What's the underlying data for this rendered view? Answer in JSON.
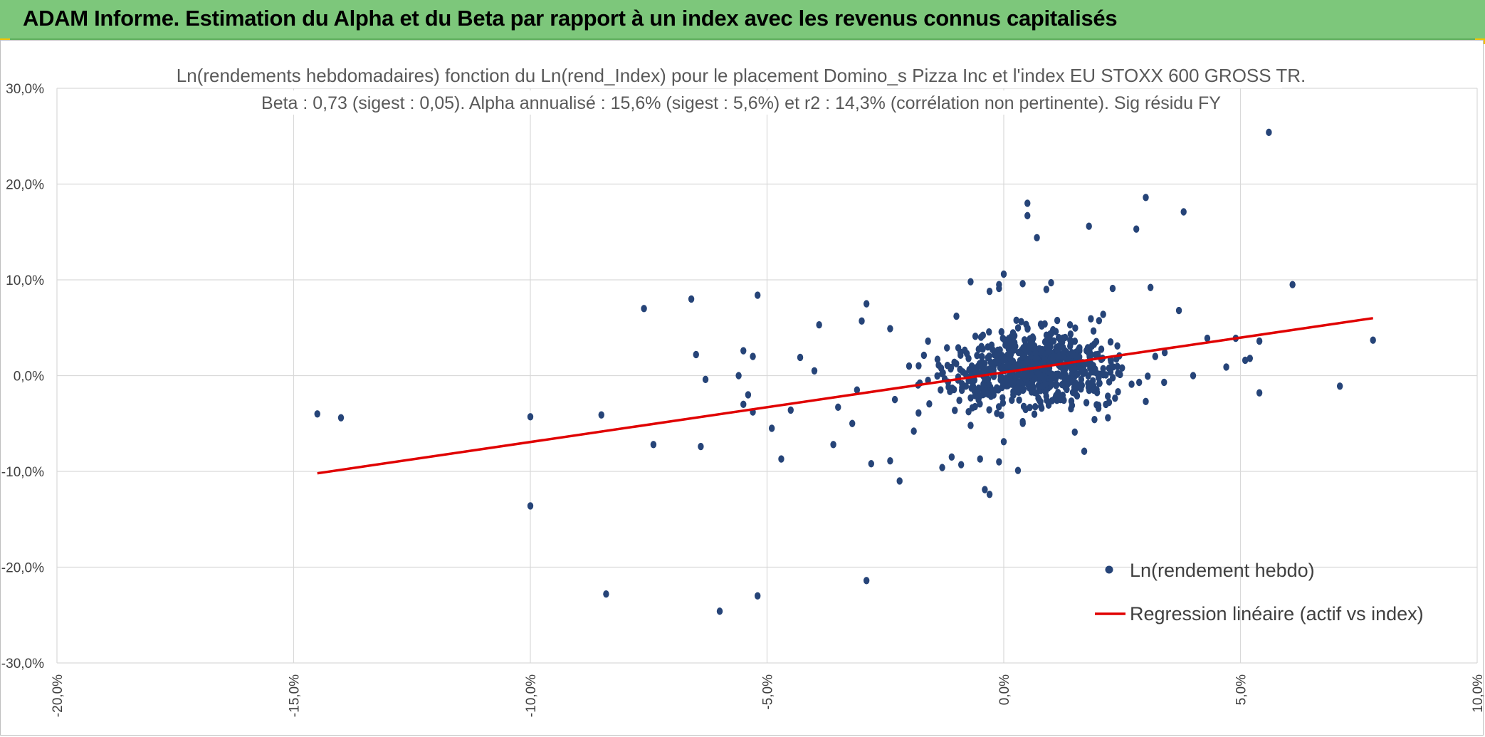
{
  "header": {
    "title": "ADAM Informe. Estimation du Alpha et du Beta par rapport à un index avec les revenus connus capitalisés"
  },
  "colors": {
    "header_bg": "#7dc77b",
    "points": "#264478",
    "regression": "#e00000",
    "grid": "#d9d9d9",
    "accent_corner": "#f2c200"
  },
  "chart_data": {
    "type": "scatter",
    "title": "Ln(rendements hebdomadaires) fonction du Ln(rend_Index) pour le placement Domino_s Pizza Inc et l'index EU STOXX 600 GROSS TR.",
    "subtitle": "Beta : 0,73 (sigest : 0,05).  Alpha annualisé : 15,6% (sigest : 5,6%) et r2 : 14,3% (corrélation non pertinente). Sig résidu FY",
    "xlim": [
      -20,
      10
    ],
    "ylim": [
      -30,
      30
    ],
    "x_ticks": [
      "-20,0%",
      "-15,0%",
      "-10,0%",
      "-5,0%",
      "0,0%",
      "5,0%",
      "10,0%"
    ],
    "x_tick_values": [
      -20,
      -15,
      -10,
      -5,
      0,
      5,
      10
    ],
    "y_ticks": [
      "30,0%",
      "20,0%",
      "10,0%",
      "0,0%",
      "-10,0%",
      "-20,0%",
      "-30,0%"
    ],
    "y_tick_values": [
      30,
      20,
      10,
      0,
      -10,
      -20,
      -30
    ],
    "legend": {
      "position": "bottom-right",
      "scatter_label": "Ln(rendement hebdo)",
      "line_label": "Regression linéaire (actif vs index)"
    },
    "series": [
      {
        "name": "Ln(rendement hebdo)",
        "kind": "scatter",
        "points": [
          [
            -14.5,
            -4.0
          ],
          [
            -14.0,
            -4.4
          ],
          [
            -10.0,
            -4.3
          ],
          [
            -10.0,
            -13.6
          ],
          [
            -8.5,
            -4.1
          ],
          [
            -8.4,
            -22.8
          ],
          [
            -7.6,
            7.0
          ],
          [
            -7.4,
            -7.2
          ],
          [
            -6.6,
            8.0
          ],
          [
            -6.5,
            2.2
          ],
          [
            -6.4,
            -7.4
          ],
          [
            -6.3,
            -0.4
          ],
          [
            -6.0,
            -24.6
          ],
          [
            -5.6,
            0.0
          ],
          [
            -5.5,
            2.6
          ],
          [
            -5.5,
            -3.0
          ],
          [
            -5.4,
            -2.0
          ],
          [
            -5.3,
            2.0
          ],
          [
            -5.3,
            -3.8
          ],
          [
            -5.2,
            8.4
          ],
          [
            -5.2,
            -23.0
          ],
          [
            -4.9,
            -5.5
          ],
          [
            -4.7,
            -8.7
          ],
          [
            -4.5,
            -3.6
          ],
          [
            -4.3,
            1.9
          ],
          [
            -4.0,
            0.5
          ],
          [
            -3.9,
            5.3
          ],
          [
            -3.6,
            -7.2
          ],
          [
            -3.2,
            -5.0
          ],
          [
            -3.0,
            5.7
          ],
          [
            -2.9,
            -21.4
          ],
          [
            -2.8,
            -9.2
          ],
          [
            -2.9,
            7.5
          ],
          [
            -2.4,
            4.9
          ],
          [
            -2.4,
            -8.9
          ],
          [
            -2.3,
            -2.5
          ],
          [
            -2.2,
            -11.0
          ],
          [
            -1.9,
            -5.8
          ],
          [
            -1.6,
            3.6
          ],
          [
            -1.3,
            -9.6
          ],
          [
            -1.1,
            -8.5
          ],
          [
            -1.0,
            6.2
          ],
          [
            -0.9,
            -9.3
          ],
          [
            -0.7,
            9.8
          ],
          [
            -0.5,
            -8.7
          ],
          [
            -0.4,
            -11.9
          ],
          [
            -0.3,
            8.8
          ],
          [
            -0.3,
            -12.4
          ],
          [
            -0.1,
            9.5
          ],
          [
            -0.1,
            -9.0
          ],
          [
            -0.1,
            9.1
          ],
          [
            0.0,
            10.6
          ],
          [
            0.0,
            -6.9
          ],
          [
            0.3,
            -9.9
          ],
          [
            0.4,
            9.6
          ],
          [
            0.5,
            18.0
          ],
          [
            0.5,
            16.7
          ],
          [
            0.7,
            14.4
          ],
          [
            0.9,
            9.0
          ],
          [
            1.0,
            9.7
          ],
          [
            1.5,
            -5.9
          ],
          [
            1.7,
            -7.9
          ],
          [
            1.8,
            15.6
          ],
          [
            2.1,
            6.4
          ],
          [
            2.2,
            -4.4
          ],
          [
            2.3,
            9.1
          ],
          [
            2.8,
            15.3
          ],
          [
            3.0,
            18.6
          ],
          [
            3.1,
            9.2
          ],
          [
            3.2,
            2.0
          ],
          [
            3.7,
            6.8
          ],
          [
            3.8,
            17.1
          ],
          [
            4.0,
            0.0
          ],
          [
            4.3,
            3.9
          ],
          [
            4.7,
            0.9
          ],
          [
            4.9,
            3.9
          ],
          [
            5.1,
            1.6
          ],
          [
            5.2,
            1.8
          ],
          [
            5.4,
            3.6
          ],
          [
            5.4,
            -1.8
          ],
          [
            5.6,
            25.4
          ],
          [
            6.1,
            9.5
          ],
          [
            7.1,
            -1.1
          ],
          [
            7.8,
            3.7
          ],
          [
            -3.5,
            -3.3
          ],
          [
            -3.1,
            -1.5
          ],
          [
            -2.0,
            1.0
          ],
          [
            -1.6,
            -0.5
          ],
          [
            -1.2,
            2.9
          ],
          [
            -0.8,
            -1.1
          ],
          [
            -0.6,
            4.1
          ],
          [
            -0.2,
            2.2
          ],
          [
            0.2,
            -2.0
          ],
          [
            0.6,
            1.5
          ],
          [
            0.8,
            -3.4
          ],
          [
            1.1,
            4.6
          ],
          [
            1.3,
            -1.2
          ],
          [
            1.6,
            2.6
          ],
          [
            1.9,
            0.4
          ],
          [
            2.4,
            3.1
          ],
          [
            2.7,
            -0.9
          ],
          [
            3.4,
            2.4
          ],
          [
            -1.8,
            -3.9
          ],
          [
            -1.4,
            1.7
          ],
          [
            -0.7,
            -5.2
          ],
          [
            -0.3,
            0.6
          ],
          [
            0.1,
            3.8
          ],
          [
            0.4,
            -4.8
          ],
          [
            0.9,
            2.9
          ],
          [
            1.2,
            -2.5
          ],
          [
            1.4,
            5.3
          ],
          [
            2.0,
            -3.1
          ],
          [
            2.5,
            0.8
          ],
          [
            3.0,
            -2.7
          ]
        ]
      },
      {
        "name": "Regression linéaire (actif vs index)",
        "kind": "line",
        "points": [
          [
            -14.5,
            -10.2
          ],
          [
            7.8,
            6.0
          ]
        ]
      }
    ]
  }
}
